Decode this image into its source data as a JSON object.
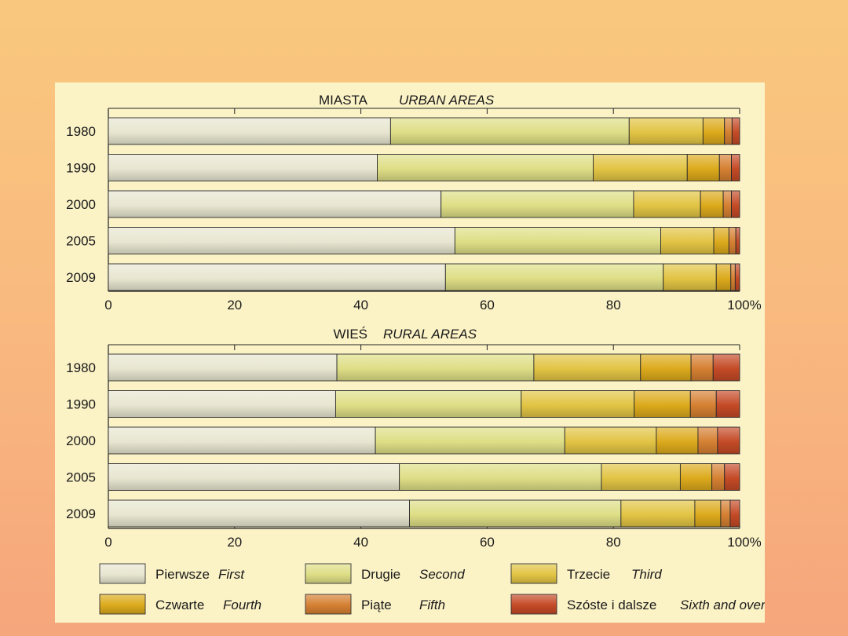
{
  "chart_data": [
    {
      "type": "bar",
      "stacked": true,
      "orientation": "horizontal",
      "title_pl": "MIASTA",
      "title_en": "URBAN AREAS",
      "categories": [
        "1980",
        "1990",
        "2000",
        "2005",
        "2009"
      ],
      "xlim": [
        0,
        100
      ],
      "xticks": [
        "0",
        "20",
        "40",
        "60",
        "80",
        "100%"
      ],
      "series": [
        {
          "name": "First",
          "values": [
            44.7,
            42.6,
            52.7,
            54.9,
            53.4
          ]
        },
        {
          "name": "Second",
          "values": [
            37.8,
            34.2,
            30.5,
            32.6,
            34.5
          ]
        },
        {
          "name": "Third",
          "values": [
            11.7,
            14.9,
            10.6,
            8.4,
            8.4
          ]
        },
        {
          "name": "Fourth",
          "values": [
            3.4,
            5.1,
            3.6,
            2.4,
            2.3
          ]
        },
        {
          "name": "Fifth",
          "values": [
            1.2,
            1.9,
            1.3,
            1.1,
            0.7
          ]
        },
        {
          "name": "Sixth and over",
          "values": [
            1.2,
            1.3,
            1.3,
            0.6,
            0.7
          ]
        }
      ]
    },
    {
      "type": "bar",
      "stacked": true,
      "orientation": "horizontal",
      "title_pl": "WIEŚ",
      "title_en": "RURAL AREAS",
      "categories": [
        "1980",
        "1990",
        "2000",
        "2005",
        "2009"
      ],
      "xlim": [
        0,
        100
      ],
      "xticks": [
        "0",
        "20",
        "40",
        "60",
        "80",
        "100%"
      ],
      "series": [
        {
          "name": "First",
          "values": [
            36.2,
            36.0,
            42.3,
            46.1,
            47.7
          ]
        },
        {
          "name": "Second",
          "values": [
            31.2,
            29.4,
            30.0,
            32.0,
            33.5
          ]
        },
        {
          "name": "Third",
          "values": [
            16.9,
            17.9,
            14.5,
            12.5,
            11.7
          ]
        },
        {
          "name": "Fourth",
          "values": [
            8.0,
            8.9,
            6.6,
            5.0,
            4.1
          ]
        },
        {
          "name": "Fifth",
          "values": [
            3.5,
            4.1,
            3.1,
            2.0,
            1.5
          ]
        },
        {
          "name": "Sixth and over",
          "values": [
            4.2,
            3.7,
            3.5,
            2.4,
            1.5
          ]
        }
      ]
    }
  ],
  "legend": [
    {
      "pl": "Pierwsze",
      "en": "First",
      "color": "#e8e6d0"
    },
    {
      "pl": "Drugie",
      "en": "Second",
      "color": "#dede86"
    },
    {
      "pl": "Trzecie",
      "en": "Third",
      "color": "#e2c444"
    },
    {
      "pl": "Czwarte",
      "en": "Fourth",
      "color": "#dcaa1c"
    },
    {
      "pl": "Piąte",
      "en": "Fifth",
      "color": "#d58032"
    },
    {
      "pl": "Szóste i dalsze",
      "en": "Sixth and over",
      "color": "#c44a26"
    }
  ]
}
